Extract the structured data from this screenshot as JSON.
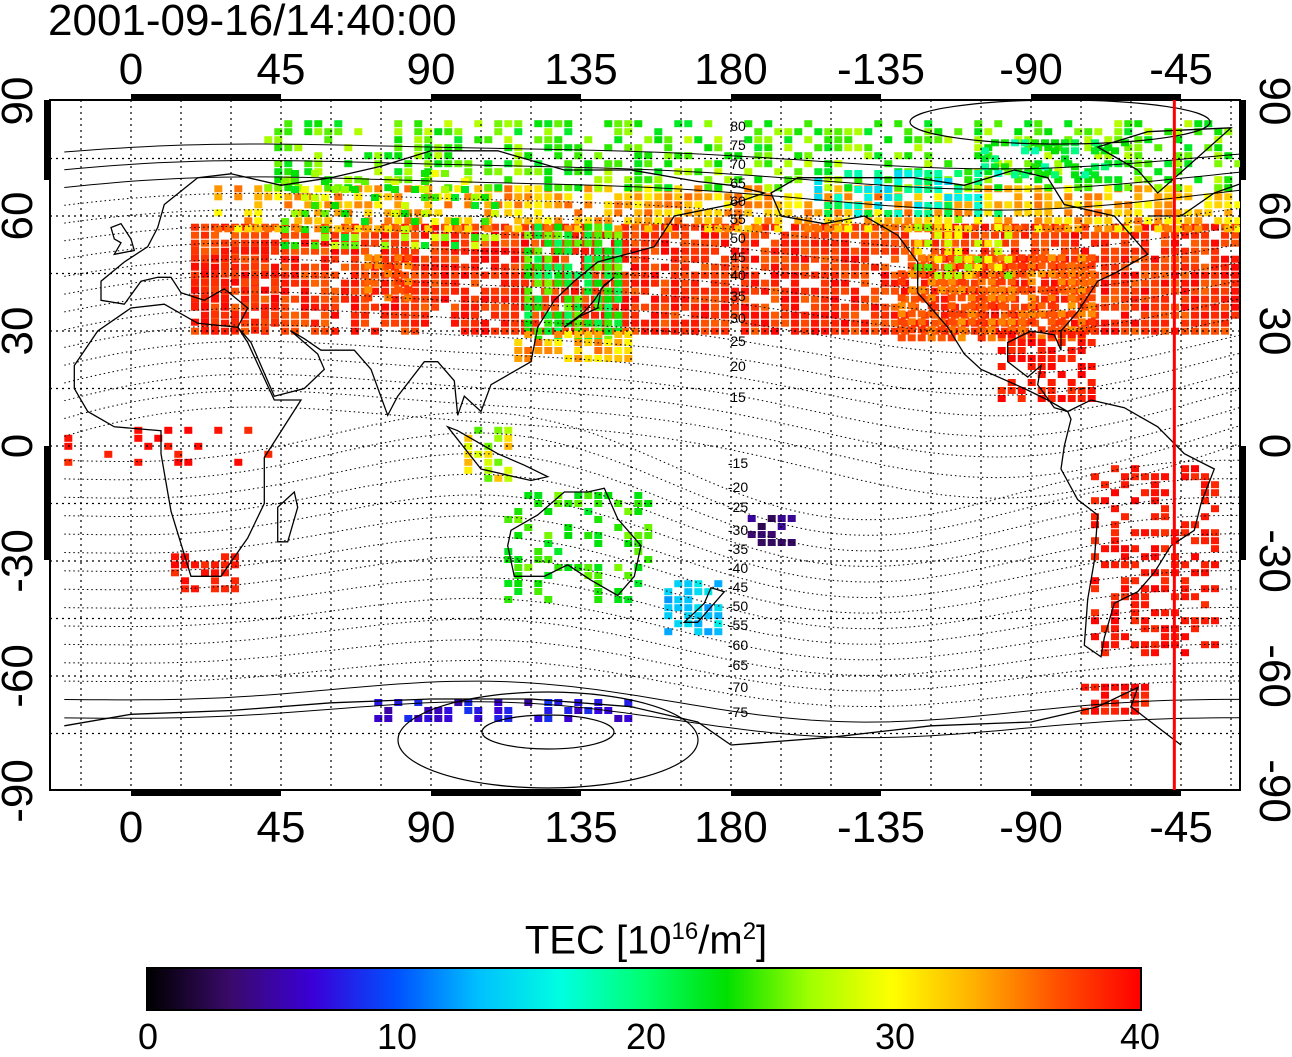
{
  "timestamp": "2001-09-16/14:40:00",
  "map": {
    "lon_ticks": [
      "0",
      "45",
      "90",
      "135",
      "180",
      "-135",
      "-90",
      "-45"
    ],
    "lat_ticks": [
      "90",
      "60",
      "30",
      "0",
      "-30",
      "-60",
      "-90"
    ],
    "contour_labels": [
      "80",
      "75",
      "70",
      "65",
      "60",
      "55",
      "50",
      "45",
      "40",
      "35",
      "30",
      "25",
      "20",
      "15",
      "-15",
      "-20",
      "-25",
      "-30",
      "-35",
      "-40",
      "-45",
      "-50",
      "-55",
      "-60",
      "-65",
      "-70",
      "-75"
    ],
    "marker_line_color": "#ff0000",
    "marker_longitude": -47
  },
  "colorbar": {
    "label_main": "TEC  [10",
    "label_exp1": "16",
    "label_mid": "/m",
    "label_exp2": "2",
    "label_end": "]",
    "tick_labels": [
      "0",
      "10",
      "20",
      "30",
      "40"
    ],
    "range": [
      0,
      40
    ],
    "colors": [
      "#000000",
      "#3a0a6a",
      "#3a00d8",
      "#0050ff",
      "#00c0ff",
      "#00ffe0",
      "#00ff70",
      "#00e000",
      "#a0ff00",
      "#ffff00",
      "#ffb000",
      "#ff5000",
      "#ff0000"
    ]
  }
}
